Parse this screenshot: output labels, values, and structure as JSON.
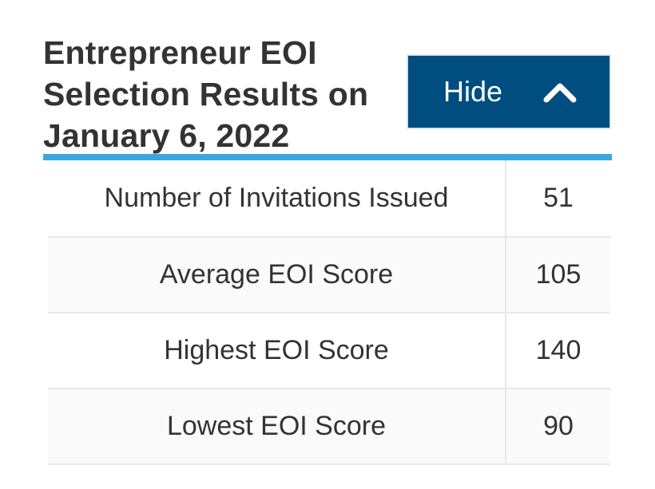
{
  "header": {
    "title_lines": [
      "Entrepreneur EOI",
      "Selection Results on",
      "January 6, 2022"
    ],
    "toggle_label": "Hide",
    "toggle_icon": "chevron-up-icon"
  },
  "colors": {
    "button_bg": "#004d80",
    "accent_rule": "#3aa8e0",
    "text": "#333333"
  },
  "results_table": {
    "rows": [
      {
        "label": "Number of Invitations Issued",
        "value": "51"
      },
      {
        "label": "Average EOI Score",
        "value": "105"
      },
      {
        "label": "Highest EOI Score",
        "value": "140"
      },
      {
        "label": "Lowest EOI Score",
        "value": "90"
      }
    ]
  }
}
